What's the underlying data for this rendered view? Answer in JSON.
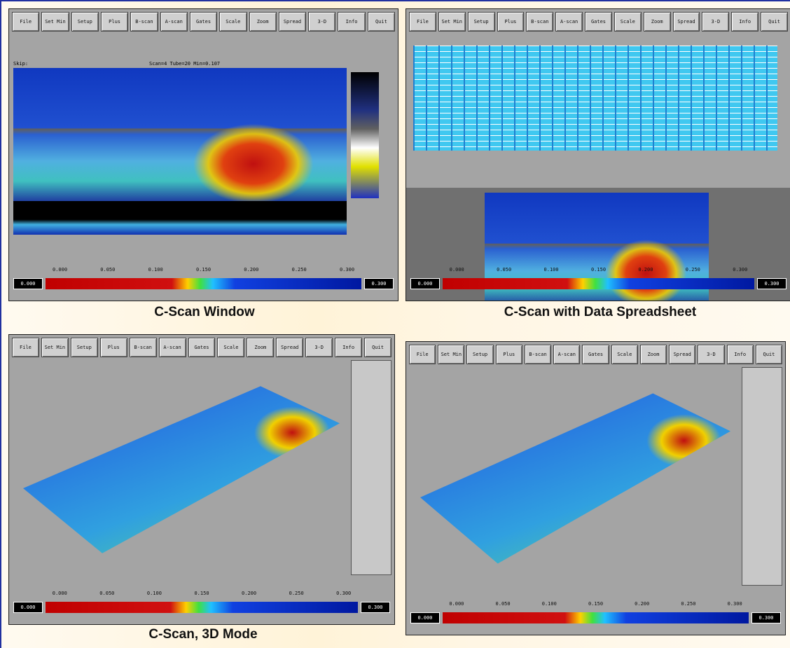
{
  "toolbar": [
    "File",
    "Set Min",
    "Setup",
    "Plus",
    "B-scan",
    "A-scan",
    "Gates",
    "Scale",
    "Zoom",
    "Spread",
    "3-D",
    "Info",
    "Quit"
  ],
  "status": "Scan=4 Tube=20 Min=0.107",
  "skip": "Skip:",
  "colorbar": {
    "ticks": [
      "0.000",
      "0.050",
      "0.100",
      "0.150",
      "0.200",
      "0.250",
      "0.300"
    ],
    "min": "0.000",
    "max": "0.300"
  },
  "captions": [
    "C-Scan Window",
    "C-Scan with Data Spreadsheet",
    "C-Scan, 3D Mode"
  ]
}
